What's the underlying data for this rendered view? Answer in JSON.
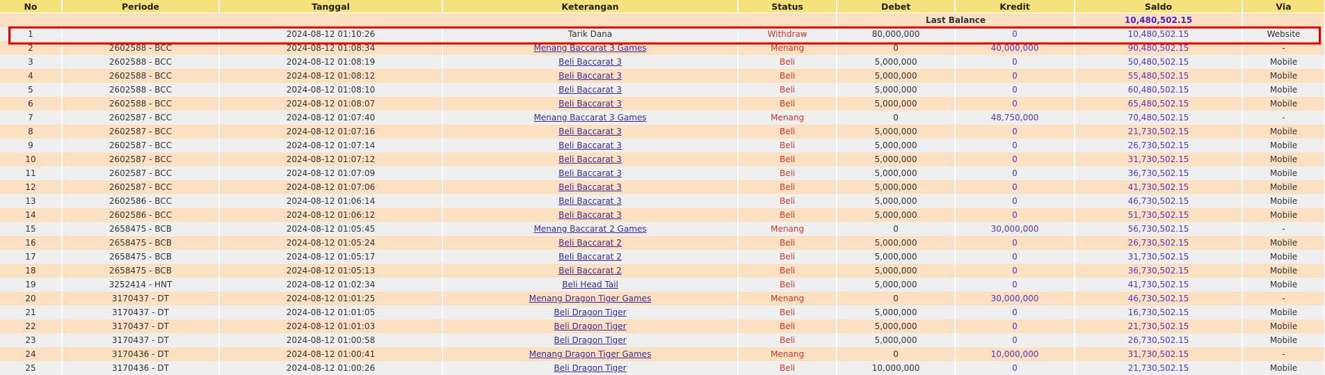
{
  "columns": [
    "No",
    "Periode",
    "Tanggal",
    "Keterangan",
    "Status",
    "Debet",
    "Kredit",
    "Saldo",
    "Via"
  ],
  "last_balance": {
    "label": "Last Balance",
    "value": "10,480,502.15"
  },
  "colors": {
    "header": "#f6e27c",
    "row_odd": "#fde0c2",
    "row_even": "#efefef",
    "status": "#cc3a2e",
    "amount": "#5234c8",
    "highlight": "#e00000"
  },
  "rows": [
    {
      "no": "1",
      "periode": "",
      "tanggal": "2024-08-12 01:10:26",
      "keterangan": "Tarik Dana",
      "status": "Withdraw",
      "debet": "80,000,000",
      "kredit": "0",
      "saldo": "10,480,502.15",
      "via": "Website"
    },
    {
      "no": "2",
      "periode": "2602588 - BCC",
      "tanggal": "2024-08-12 01:08:34",
      "keterangan": "Menang Baccarat 3 Games",
      "status": "Menang",
      "debet": "0",
      "kredit": "40,000,000",
      "saldo": "90,480,502.15",
      "via": "-"
    },
    {
      "no": "3",
      "periode": "2602588 - BCC",
      "tanggal": "2024-08-12 01:08:19",
      "keterangan": "Beli Baccarat 3",
      "status": "Beli",
      "debet": "5,000,000",
      "kredit": "0",
      "saldo": "50,480,502.15",
      "via": "Mobile"
    },
    {
      "no": "4",
      "periode": "2602588 - BCC",
      "tanggal": "2024-08-12 01:08:12",
      "keterangan": "Beli Baccarat 3",
      "status": "Beli",
      "debet": "5,000,000",
      "kredit": "0",
      "saldo": "55,480,502.15",
      "via": "Mobile"
    },
    {
      "no": "5",
      "periode": "2602588 - BCC",
      "tanggal": "2024-08-12 01:08:10",
      "keterangan": "Beli Baccarat 3",
      "status": "Beli",
      "debet": "5,000,000",
      "kredit": "0",
      "saldo": "60,480,502.15",
      "via": "Mobile"
    },
    {
      "no": "6",
      "periode": "2602588 - BCC",
      "tanggal": "2024-08-12 01:08:07",
      "keterangan": "Beli Baccarat 3",
      "status": "Beli",
      "debet": "5,000,000",
      "kredit": "0",
      "saldo": "65,480,502.15",
      "via": "Mobile"
    },
    {
      "no": "7",
      "periode": "2602587 - BCC",
      "tanggal": "2024-08-12 01:07:40",
      "keterangan": "Menang Baccarat 3 Games",
      "status": "Menang",
      "debet": "0",
      "kredit": "48,750,000",
      "saldo": "70,480,502.15",
      "via": "-"
    },
    {
      "no": "8",
      "periode": "2602587 - BCC",
      "tanggal": "2024-08-12 01:07:16",
      "keterangan": "Beli Baccarat 3",
      "status": "Beli",
      "debet": "5,000,000",
      "kredit": "0",
      "saldo": "21,730,502.15",
      "via": "Mobile"
    },
    {
      "no": "9",
      "periode": "2602587 - BCC",
      "tanggal": "2024-08-12 01:07:14",
      "keterangan": "Beli Baccarat 3",
      "status": "Beli",
      "debet": "5,000,000",
      "kredit": "0",
      "saldo": "26,730,502.15",
      "via": "Mobile"
    },
    {
      "no": "10",
      "periode": "2602587 - BCC",
      "tanggal": "2024-08-12 01:07:12",
      "keterangan": "Beli Baccarat 3",
      "status": "Beli",
      "debet": "5,000,000",
      "kredit": "0",
      "saldo": "31,730,502.15",
      "via": "Mobile"
    },
    {
      "no": "11",
      "periode": "2602587 - BCC",
      "tanggal": "2024-08-12 01:07:09",
      "keterangan": "Beli Baccarat 3",
      "status": "Beli",
      "debet": "5,000,000",
      "kredit": "0",
      "saldo": "36,730,502.15",
      "via": "Mobile"
    },
    {
      "no": "12",
      "periode": "2602587 - BCC",
      "tanggal": "2024-08-12 01:07:06",
      "keterangan": "Beli Baccarat 3",
      "status": "Beli",
      "debet": "5,000,000",
      "kredit": "0",
      "saldo": "41,730,502.15",
      "via": "Mobile"
    },
    {
      "no": "13",
      "periode": "2602586 - BCC",
      "tanggal": "2024-08-12 01:06:14",
      "keterangan": "Beli Baccarat 3",
      "status": "Beli",
      "debet": "5,000,000",
      "kredit": "0",
      "saldo": "46,730,502.15",
      "via": "Mobile"
    },
    {
      "no": "14",
      "periode": "2602586 - BCC",
      "tanggal": "2024-08-12 01:06:12",
      "keterangan": "Beli Baccarat 3",
      "status": "Beli",
      "debet": "5,000,000",
      "kredit": "0",
      "saldo": "51,730,502.15",
      "via": "Mobile"
    },
    {
      "no": "15",
      "periode": "2658475 - BCB",
      "tanggal": "2024-08-12 01:05:45",
      "keterangan": "Menang Baccarat 2 Games",
      "status": "Menang",
      "debet": "0",
      "kredit": "30,000,000",
      "saldo": "56,730,502.15",
      "via": "-"
    },
    {
      "no": "16",
      "periode": "2658475 - BCB",
      "tanggal": "2024-08-12 01:05:24",
      "keterangan": "Beli Baccarat 2",
      "status": "Beli",
      "debet": "5,000,000",
      "kredit": "0",
      "saldo": "26,730,502.15",
      "via": "Mobile"
    },
    {
      "no": "17",
      "periode": "2658475 - BCB",
      "tanggal": "2024-08-12 01:05:17",
      "keterangan": "Beli Baccarat 2",
      "status": "Beli",
      "debet": "5,000,000",
      "kredit": "0",
      "saldo": "31,730,502.15",
      "via": "Mobile"
    },
    {
      "no": "18",
      "periode": "2658475 - BCB",
      "tanggal": "2024-08-12 01:05:13",
      "keterangan": "Beli Baccarat 2",
      "status": "Beli",
      "debet": "5,000,000",
      "kredit": "0",
      "saldo": "36,730,502.15",
      "via": "Mobile"
    },
    {
      "no": "19",
      "periode": "3252414 - HNT",
      "tanggal": "2024-08-12 01:02:34",
      "keterangan": "Beli Head Tail",
      "status": "Beli",
      "debet": "5,000,000",
      "kredit": "0",
      "saldo": "41,730,502.15",
      "via": "Mobile"
    },
    {
      "no": "20",
      "periode": "3170437 - DT",
      "tanggal": "2024-08-12 01:01:25",
      "keterangan": "Menang Dragon Tiger Games",
      "status": "Menang",
      "debet": "0",
      "kredit": "30,000,000",
      "saldo": "46,730,502.15",
      "via": "-"
    },
    {
      "no": "21",
      "periode": "3170437 - DT",
      "tanggal": "2024-08-12 01:01:05",
      "keterangan": "Beli Dragon Tiger",
      "status": "Beli",
      "debet": "5,000,000",
      "kredit": "0",
      "saldo": "16,730,502.15",
      "via": "Mobile"
    },
    {
      "no": "22",
      "periode": "3170437 - DT",
      "tanggal": "2024-08-12 01:01:03",
      "keterangan": "Beli Dragon Tiger",
      "status": "Beli",
      "debet": "5,000,000",
      "kredit": "0",
      "saldo": "21,730,502.15",
      "via": "Mobile"
    },
    {
      "no": "23",
      "periode": "3170437 - DT",
      "tanggal": "2024-08-12 01:00:58",
      "keterangan": "Beli Dragon Tiger",
      "status": "Beli",
      "debet": "5,000,000",
      "kredit": "0",
      "saldo": "26,730,502.15",
      "via": "Mobile"
    },
    {
      "no": "24",
      "periode": "3170436 - DT",
      "tanggal": "2024-08-12 01:00:41",
      "keterangan": "Menang Dragon Tiger Games",
      "status": "Menang",
      "debet": "0",
      "kredit": "10,000,000",
      "saldo": "31,730,502.15",
      "via": "-"
    },
    {
      "no": "25",
      "periode": "3170436 - DT",
      "tanggal": "2024-08-12 01:00:26",
      "keterangan": "Beli Dragon Tiger",
      "status": "Beli",
      "debet": "10,000,000",
      "kredit": "0",
      "saldo": "21,730,502.15",
      "via": "Mobile"
    }
  ]
}
